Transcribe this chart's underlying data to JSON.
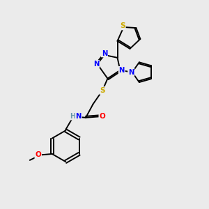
{
  "bg_color": "#ebebeb",
  "atom_colors": {
    "N": "#0000ff",
    "S": "#ccaa00",
    "O": "#ff0000",
    "H": "#6699aa"
  },
  "bond_color": "#000000",
  "figsize": [
    3.0,
    3.0
  ],
  "dpi": 100,
  "lw": 1.4,
  "fs": 7.2
}
